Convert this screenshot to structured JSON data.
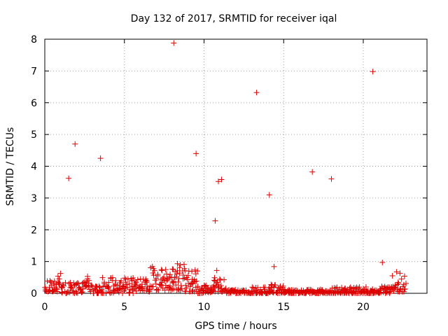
{
  "chart_data": {
    "type": "scatter",
    "title": "Day 132 of 2017, SRMTID for receiver iqal",
    "xlabel": "GPS time / hours",
    "ylabel": "SRMTID / TECUs",
    "xlim": [
      0,
      24
    ],
    "ylim": [
      0,
      8
    ],
    "xticks": [
      0,
      5,
      10,
      15,
      20
    ],
    "yticks": [
      0,
      1,
      2,
      3,
      4,
      5,
      6,
      7,
      8
    ],
    "grid": true,
    "marker": "+",
    "color": "#dd0000",
    "outliers": [
      {
        "x": 1.5,
        "y": 3.62
      },
      {
        "x": 1.9,
        "y": 4.7
      },
      {
        "x": 3.5,
        "y": 4.25
      },
      {
        "x": 8.1,
        "y": 7.88
      },
      {
        "x": 9.5,
        "y": 4.4
      },
      {
        "x": 10.7,
        "y": 2.28
      },
      {
        "x": 10.8,
        "y": 0.72
      },
      {
        "x": 10.9,
        "y": 3.52
      },
      {
        "x": 11.1,
        "y": 3.58
      },
      {
        "x": 13.3,
        "y": 6.32
      },
      {
        "x": 14.1,
        "y": 3.1
      },
      {
        "x": 14.4,
        "y": 0.84
      },
      {
        "x": 16.8,
        "y": 3.82
      },
      {
        "x": 18.0,
        "y": 3.6
      },
      {
        "x": 20.6,
        "y": 6.98
      },
      {
        "x": 21.2,
        "y": 0.97
      }
    ],
    "background_envelope": [
      {
        "from": 0.0,
        "to": 0.8,
        "min": 0.05,
        "max": 0.45
      },
      {
        "from": 0.8,
        "to": 1.0,
        "min": 0.25,
        "max": 0.7
      },
      {
        "from": 1.0,
        "to": 2.4,
        "min": 0.0,
        "max": 0.35
      },
      {
        "from": 2.4,
        "to": 2.8,
        "min": 0.2,
        "max": 0.6
      },
      {
        "from": 2.8,
        "to": 3.6,
        "min": 0.0,
        "max": 0.3
      },
      {
        "from": 3.6,
        "to": 5.6,
        "min": 0.0,
        "max": 0.5
      },
      {
        "from": 5.6,
        "to": 6.6,
        "min": 0.05,
        "max": 0.45
      },
      {
        "from": 6.6,
        "to": 7.0,
        "min": 0.2,
        "max": 0.85
      },
      {
        "from": 7.0,
        "to": 8.0,
        "min": 0.1,
        "max": 0.8
      },
      {
        "from": 8.0,
        "to": 8.8,
        "min": 0.1,
        "max": 0.95
      },
      {
        "from": 8.8,
        "to": 9.6,
        "min": 0.05,
        "max": 0.75
      },
      {
        "from": 9.6,
        "to": 10.6,
        "min": 0.0,
        "max": 0.25
      },
      {
        "from": 10.6,
        "to": 11.4,
        "min": 0.05,
        "max": 0.55
      },
      {
        "from": 11.4,
        "to": 13.0,
        "min": 0.0,
        "max": 0.12
      },
      {
        "from": 13.0,
        "to": 14.2,
        "min": 0.0,
        "max": 0.2
      },
      {
        "from": 14.2,
        "to": 15.0,
        "min": 0.0,
        "max": 0.28
      },
      {
        "from": 15.0,
        "to": 18.0,
        "min": 0.0,
        "max": 0.12
      },
      {
        "from": 18.0,
        "to": 20.6,
        "min": 0.0,
        "max": 0.2
      },
      {
        "from": 20.6,
        "to": 21.8,
        "min": 0.0,
        "max": 0.22
      },
      {
        "from": 21.8,
        "to": 22.7,
        "min": 0.05,
        "max": 0.68
      }
    ]
  }
}
